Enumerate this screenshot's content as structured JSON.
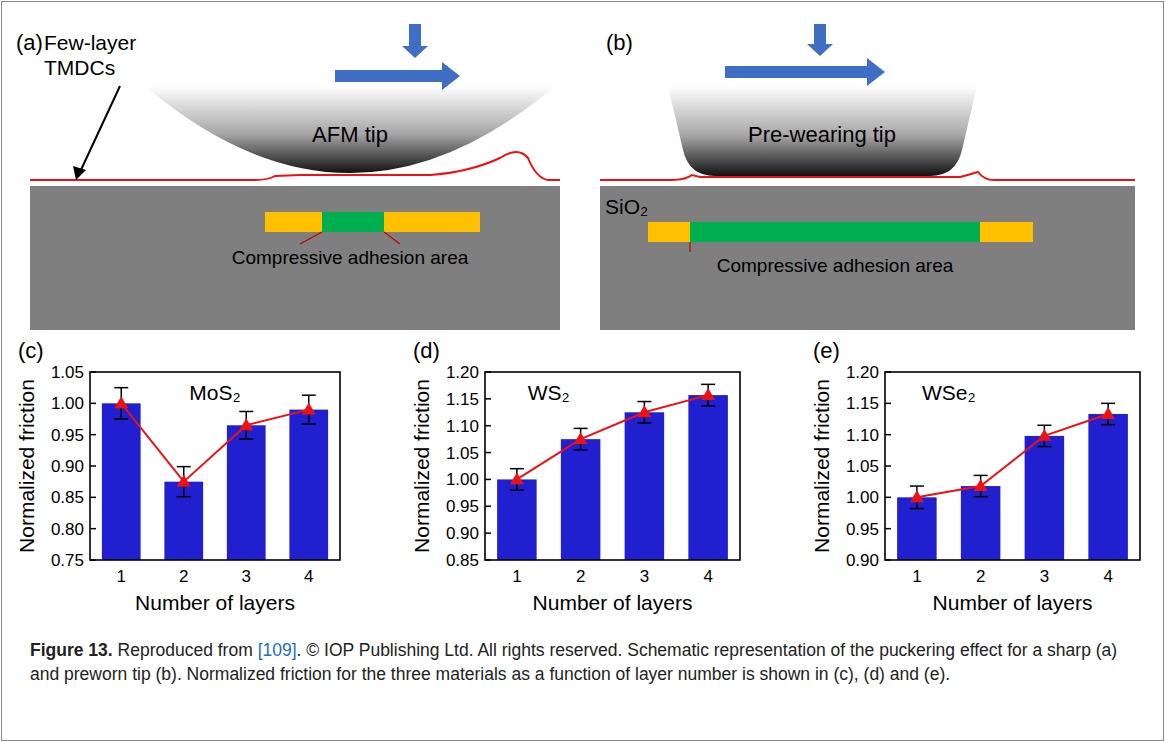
{
  "schematic": {
    "panels": [
      {
        "label": "(a)",
        "flake_label": "Few-layer TMDCs",
        "tip_label": "AFM tip",
        "area_label": "Compressive adhesion area"
      },
      {
        "label": "(b)",
        "tip_label": "Pre-wearing tip",
        "substrate_label": "SiO₂",
        "area_label": "Compressive adhesion area"
      }
    ]
  },
  "chart_data": [
    {
      "type": "bar",
      "panel": "(c)",
      "title": "MoS₂",
      "x_label": "Number of layers",
      "y_label": "Normalized friction",
      "categories": [
        "1",
        "2",
        "3",
        "4"
      ],
      "series": [
        {
          "type": "bar",
          "color": "#2020d0",
          "values": [
            1.0,
            0.875,
            0.965,
            0.99
          ],
          "errors": [
            0.025,
            0.024,
            0.022,
            0.023
          ]
        },
        {
          "type": "line",
          "color": "#ee1111",
          "marker": "triangle",
          "values": [
            1.0,
            0.875,
            0.965,
            0.99
          ]
        }
      ],
      "ylim": [
        0.75,
        1.05
      ],
      "yticks": [
        0.75,
        {
          "value": 0.8,
          "label": "0.80"
        },
        0.85,
        {
          "value": 0.9,
          "label": "0.90"
        },
        0.95,
        {
          "value": 1.0,
          "label": "1.00"
        },
        1.05
      ],
      "grid": false
    },
    {
      "type": "bar",
      "panel": "(d)",
      "title": "WS₂",
      "x_label": "Number of layers",
      "y_label": "Normalized friction",
      "categories": [
        "1",
        "2",
        "3",
        "4"
      ],
      "series": [
        {
          "type": "bar",
          "color": "#2020d0",
          "values": [
            1.0,
            1.075,
            1.125,
            1.157
          ],
          "errors": [
            0.02,
            0.02,
            0.02,
            0.02
          ]
        },
        {
          "type": "line",
          "color": "#ee1111",
          "marker": "triangle",
          "values": [
            1.0,
            1.075,
            1.125,
            1.157
          ]
        }
      ],
      "ylim": [
        0.85,
        1.2
      ],
      "yticks": [
        0.85,
        {
          "value": 0.9,
          "label": "0.90"
        },
        0.95,
        {
          "value": 1.0,
          "label": "1.00"
        },
        1.05,
        {
          "value": 1.1,
          "label": "1.10"
        },
        1.15,
        {
          "value": 1.2,
          "label": "1.20"
        }
      ],
      "grid": false
    },
    {
      "type": "bar",
      "panel": "(e)",
      "title": "WSe₂",
      "x_label": "Number of layers",
      "y_label": "Normalized friction",
      "categories": [
        "1",
        "2",
        "3",
        "4"
      ],
      "series": [
        {
          "type": "bar",
          "color": "#2020d0",
          "values": [
            1.0,
            1.018,
            1.098,
            1.133
          ],
          "errors": [
            0.018,
            0.017,
            0.017,
            0.017
          ]
        },
        {
          "type": "line",
          "color": "#ee1111",
          "marker": "triangle",
          "values": [
            1.0,
            1.018,
            1.098,
            1.133
          ]
        }
      ],
      "ylim": [
        0.9,
        1.2
      ],
      "yticks": [
        {
          "value": 0.9,
          "label": "0.90"
        },
        0.95,
        {
          "value": 1.0,
          "label": "1.00"
        },
        1.05,
        {
          "value": 1.1,
          "label": "1.10"
        },
        1.15,
        {
          "value": 1.2,
          "label": "1.20"
        }
      ],
      "grid": false
    }
  ],
  "caption": {
    "label": "Figure 13.",
    "before_ref": "Reproduced from ",
    "ref": "[109]",
    "after_ref": ". © IOP Publishing Ltd. All rights reserved. Schematic representation of the puckering effect for a sharp (a) and preworn tip (b). Normalized friction for the three materials as a function of layer number is shown in (c), (d) and (e)."
  }
}
